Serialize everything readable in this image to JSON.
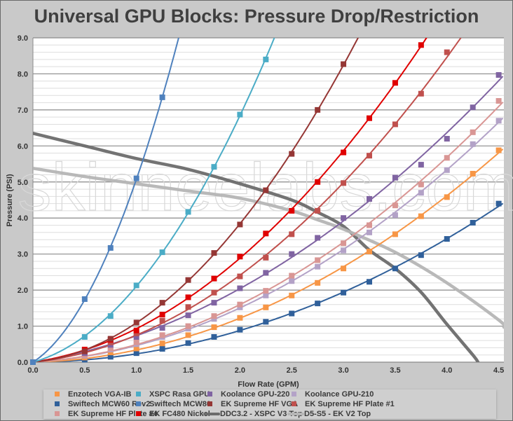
{
  "chart_data": {
    "type": "scatter",
    "title": "Universal GPU Blocks: Pressure Drop/Restriction",
    "xlabel": "Flow Rate (GPM)",
    "ylabel": "Pressure (PSI)",
    "xlim": [
      0,
      4.55
    ],
    "ylim": [
      0,
      9
    ],
    "xticks": [
      "0.0",
      "0.5",
      "1.0",
      "1.5",
      "2.0",
      "2.5",
      "3.0",
      "3.5",
      "4.0",
      "4.5"
    ],
    "yticks": [
      "0.0",
      "1.0",
      "2.0",
      "3.0",
      "4.0",
      "5.0",
      "6.0",
      "7.0",
      "8.0",
      "9.0"
    ],
    "grid": {
      "major": 1.0,
      "minor": 0.2
    },
    "legend_position": "bottom",
    "watermark": "skinneelabs.com",
    "x": [
      0,
      0.5,
      0.75,
      1.0,
      1.25,
      1.5,
      1.75,
      2.0,
      2.25,
      2.5,
      2.75,
      3.0,
      3.25,
      3.5,
      3.75,
      4.0,
      4.25,
      4.5
    ],
    "series": [
      {
        "name": "Enzotech VGA-IB",
        "color": "#f79646",
        "kind": "block",
        "values": [
          0,
          0.13,
          0.27,
          0.38,
          0.52,
          0.75,
          0.97,
          1.23,
          1.52,
          1.85,
          2.2,
          2.6,
          3.07,
          3.55,
          4.05,
          4.58,
          5.23,
          5.88
        ]
      },
      {
        "name": "XSPC Rasa GPU",
        "color": "#4bacc6",
        "kind": "block",
        "values": [
          0,
          0.7,
          1.28,
          2.13,
          3.05,
          4.17,
          5.42,
          6.87,
          8.4,
          null,
          null,
          null,
          null,
          null,
          null,
          null,
          null,
          null
        ]
      },
      {
        "name": "Koolance GPU-220",
        "color": "#8064a2",
        "kind": "block",
        "values": [
          0,
          0.25,
          0.48,
          0.7,
          0.95,
          1.3,
          1.65,
          2.05,
          2.48,
          3.0,
          3.45,
          4.0,
          4.53,
          5.12,
          5.48,
          6.2,
          7.07,
          7.97
        ]
      },
      {
        "name": "Koolance GPU-210",
        "color": "#b3a2c7",
        "kind": "block",
        "values": [
          0,
          0.18,
          0.35,
          0.5,
          0.7,
          0.93,
          1.2,
          1.52,
          1.85,
          2.25,
          2.65,
          3.1,
          3.6,
          4.08,
          4.7,
          5.33,
          6.05,
          6.7
        ]
      },
      {
        "name": "Swiftech MCW60 Rev2",
        "color": "#30609a",
        "kind": "block",
        "values": [
          0,
          0.07,
          0.15,
          0.25,
          0.37,
          0.53,
          0.7,
          0.9,
          1.12,
          1.35,
          1.63,
          1.93,
          2.23,
          2.6,
          2.97,
          3.42,
          3.87,
          4.4
        ]
      },
      {
        "name": "Swiftech MCW80",
        "color": "#4f81bd",
        "kind": "block",
        "values": [
          0,
          1.75,
          3.17,
          5.1,
          7.35,
          null,
          null,
          null,
          null,
          null,
          null,
          null,
          null,
          null,
          null,
          null,
          null,
          null
        ]
      },
      {
        "name": "EK Supreme HF VGA",
        "color": "#953735",
        "kind": "block",
        "values": [
          0,
          0.3,
          0.65,
          1.1,
          1.65,
          2.28,
          3.03,
          3.82,
          4.77,
          5.78,
          7.0,
          8.27,
          null,
          null,
          null,
          null,
          null,
          null
        ]
      },
      {
        "name": "EK Supreme HF Plate #1",
        "color": "#c0504d",
        "kind": "block",
        "values": [
          0,
          0.3,
          0.55,
          0.8,
          1.15,
          1.53,
          1.93,
          2.38,
          2.9,
          3.55,
          4.2,
          4.97,
          5.73,
          6.6,
          7.45,
          8.6,
          null,
          null
        ]
      },
      {
        "name": "EK Supreme HF Plate #4",
        "color": "#d99694",
        "kind": "block",
        "values": [
          0,
          0.2,
          0.38,
          0.55,
          0.75,
          1.0,
          1.28,
          1.6,
          1.98,
          2.4,
          2.83,
          3.3,
          3.8,
          4.35,
          4.93,
          5.67,
          6.38,
          7.25
        ]
      },
      {
        "name": "EK FC480 Nickel",
        "color": "#e00000",
        "kind": "block",
        "values": [
          0,
          0.35,
          0.62,
          0.88,
          1.32,
          1.8,
          2.32,
          2.93,
          3.57,
          4.2,
          5.0,
          5.82,
          6.77,
          7.75,
          8.8,
          null,
          null,
          null
        ]
      },
      {
        "name": "DDC3.2 - XSPC V3 Top",
        "color": "#6b6b6b",
        "kind": "pump",
        "points": [
          [
            0,
            6.35
          ],
          [
            0.5,
            6.0
          ],
          [
            1.0,
            5.65
          ],
          [
            1.5,
            5.35
          ],
          [
            2.0,
            4.95
          ],
          [
            2.5,
            4.5
          ],
          [
            2.75,
            4.16
          ],
          [
            3.0,
            3.77
          ],
          [
            3.25,
            3.11
          ],
          [
            3.5,
            2.6
          ],
          [
            3.75,
            1.94
          ],
          [
            4.0,
            1.05
          ],
          [
            4.25,
            0.2
          ],
          [
            4.3,
            0
          ]
        ]
      },
      {
        "name": "D5-S5 - EK V2 Top",
        "color": "#b5b5b5",
        "kind": "pump",
        "points": [
          [
            0,
            5.38
          ],
          [
            0.5,
            5.15
          ],
          [
            1.0,
            4.95
          ],
          [
            1.5,
            4.75
          ],
          [
            2.0,
            4.55
          ],
          [
            2.5,
            4.2
          ],
          [
            2.75,
            3.95
          ],
          [
            3.0,
            3.69
          ],
          [
            3.5,
            3.05
          ],
          [
            4.0,
            2.2
          ],
          [
            4.5,
            1.17
          ],
          [
            4.55,
            0.97
          ]
        ]
      }
    ]
  },
  "legend": {
    "items": [
      "Enzotech VGA-IB",
      "XSPC Rasa GPU",
      "Koolance GPU-220",
      "Koolance GPU-210",
      "Swiftech MCW60 Rev2",
      "Swiftech MCW80",
      "EK Supreme HF VGA",
      "EK Supreme HF Plate #1",
      "EK Supreme HF Plate #4",
      "EK FC480 Nickel",
      "DDC3.2 - XSPC V3 Top",
      "D5-S5 - EK V2 Top"
    ]
  }
}
